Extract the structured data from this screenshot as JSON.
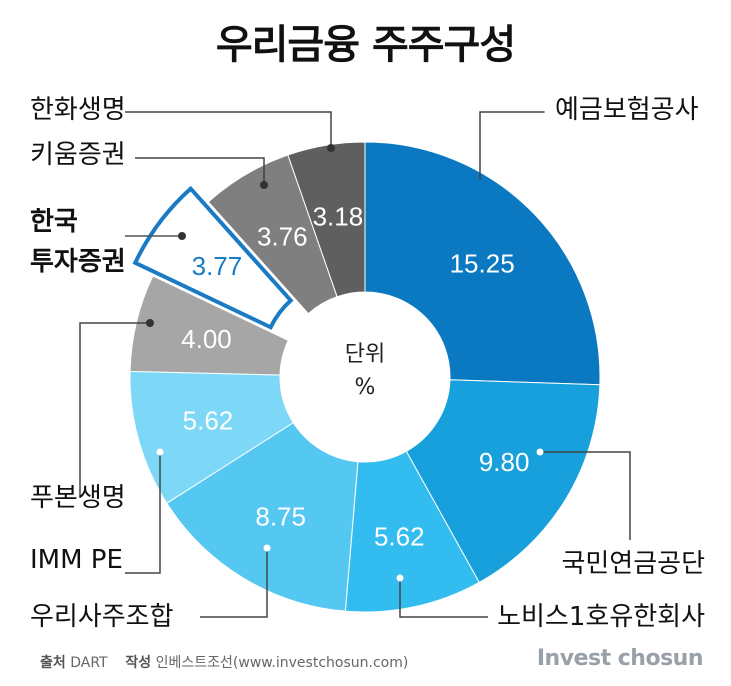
{
  "title": "우리금융 주주구성",
  "center_label": {
    "line1": "단위",
    "line2": "%"
  },
  "footer": {
    "source_label": "출처",
    "source_value": "DART",
    "author_label": "작성",
    "author_value": "인베스트조선(www.investchosun.com)"
  },
  "brand": "Invest chosun",
  "colors": {
    "highlight_outline": "#1a7bc4",
    "highlight_fill": "#ffffff",
    "leader_line": "#444444"
  },
  "chart_data": {
    "type": "pie",
    "variant": "donut",
    "unit": "%",
    "slices": [
      {
        "name": "예금보험공사",
        "value": 15.25,
        "value_label": "15.25",
        "color": "#0a79c2"
      },
      {
        "name": "국민연금공단",
        "value": 9.8,
        "value_label": "9.80",
        "color": "#17a0dc"
      },
      {
        "name": "노비스1호유한회사",
        "value": 5.62,
        "value_label": "5.62",
        "color": "#33bcef"
      },
      {
        "name": "우리사주조합",
        "value": 8.75,
        "value_label": "8.75",
        "color": "#55c8f2"
      },
      {
        "name": "푸본생명",
        "value": 5.62,
        "value_label": "5.62",
        "color": "#7dd8f8"
      },
      {
        "name": "IMM PE",
        "value": 4.0,
        "value_label": "4.00",
        "color": "#a6a6a6"
      },
      {
        "name": "한국투자증권",
        "name_lines": [
          "한국",
          "투자증권"
        ],
        "value": 3.77,
        "value_label": "3.77",
        "color": "#ffffff",
        "highlight": true
      },
      {
        "name": "키움증권",
        "value": 3.76,
        "value_label": "3.76",
        "color": "#7f7f7f"
      },
      {
        "name": "한화생명",
        "value": 3.18,
        "value_label": "3.18",
        "color": "#5f5f5f"
      }
    ]
  }
}
